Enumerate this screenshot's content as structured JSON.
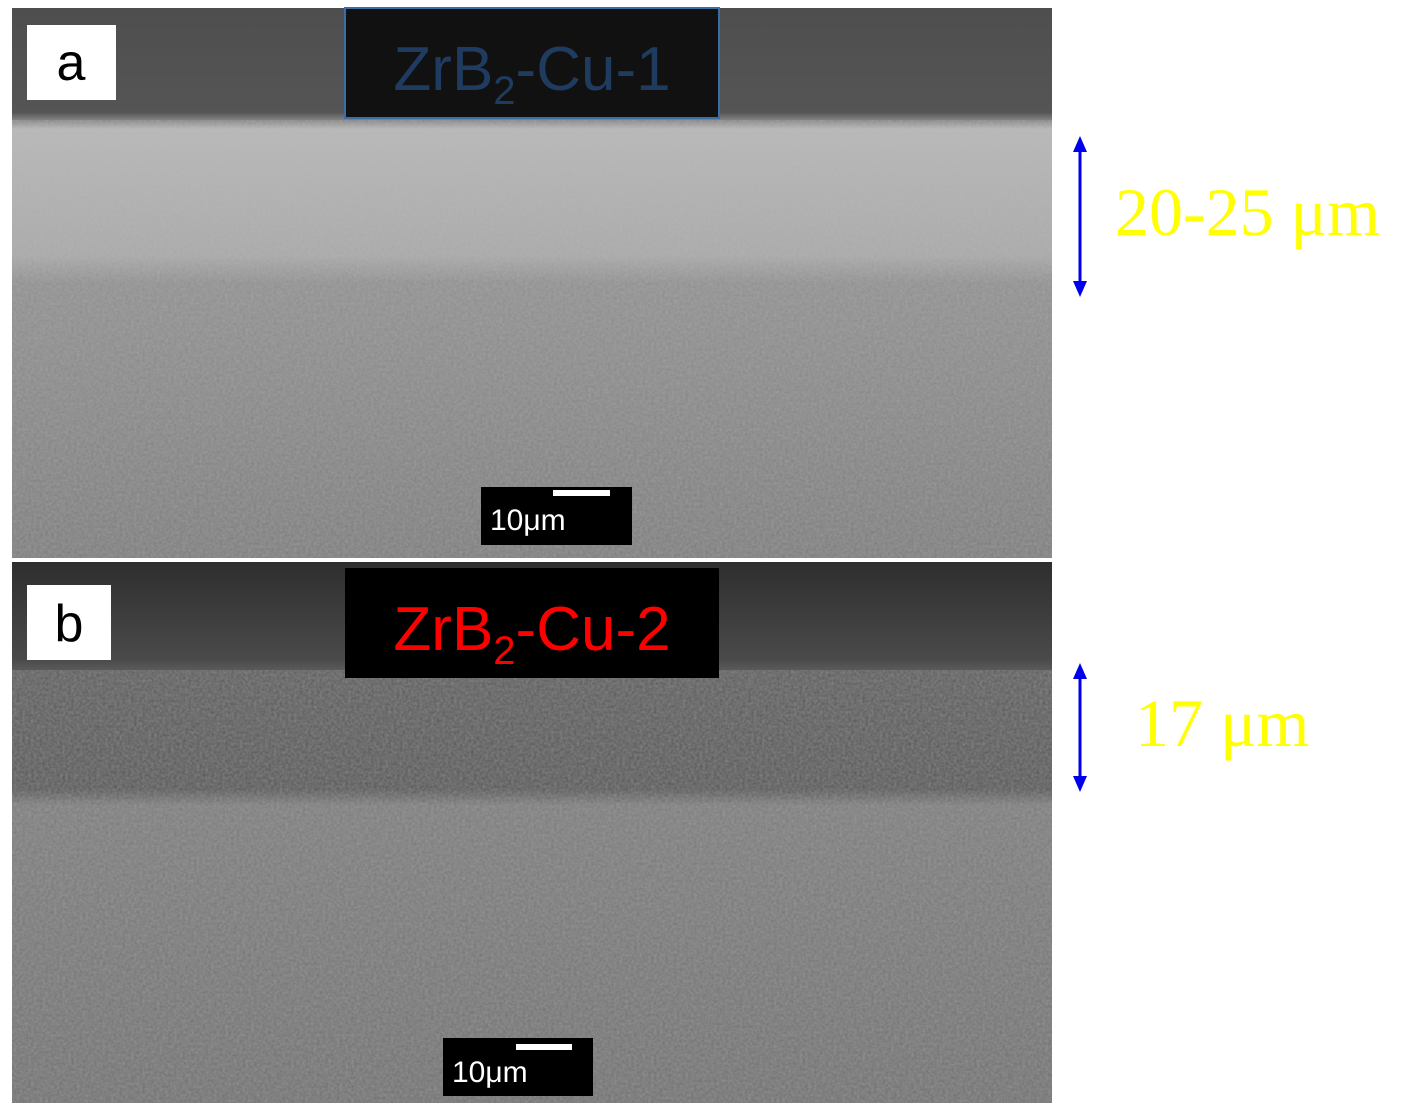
{
  "panels": [
    {
      "letter": "a",
      "title": {
        "base": "ZrB",
        "sub": "2",
        "rest": "-Cu-1"
      },
      "scale_bar": "10μm",
      "thickness": "20-25 μm"
    },
    {
      "letter": "b",
      "title": {
        "base": "ZrB",
        "sub": "2",
        "rest": "-Cu-2"
      },
      "scale_bar": "10μm",
      "thickness": "17 μm"
    }
  ]
}
